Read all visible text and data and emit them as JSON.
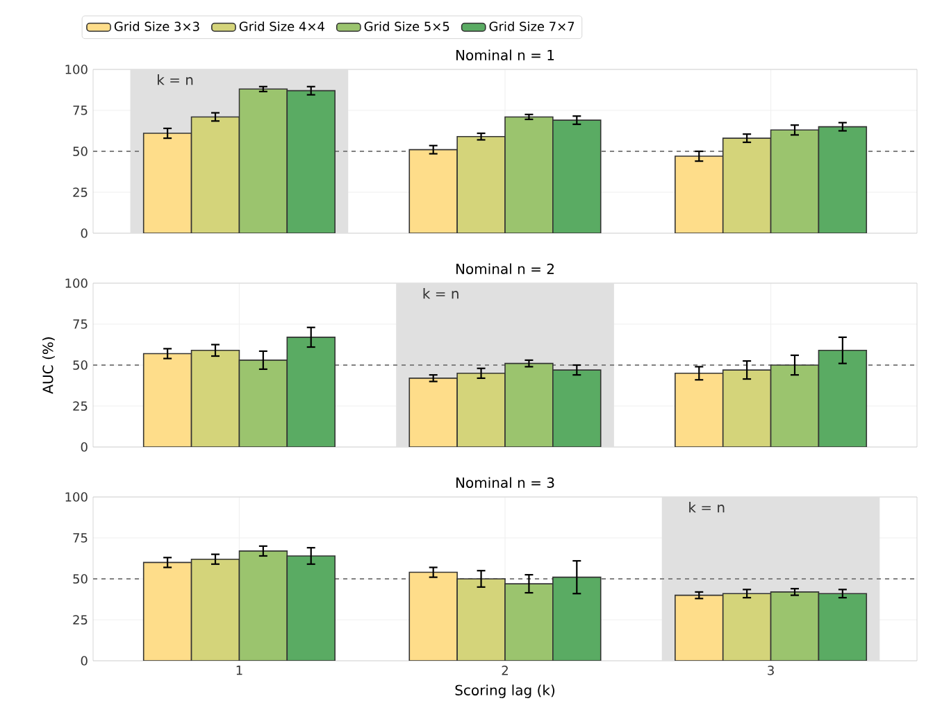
{
  "chart_data": [
    {
      "type": "bar",
      "title": "Nominal n = 1",
      "x": [
        1,
        2,
        3
      ],
      "xlim": [
        0.45,
        3.55
      ],
      "xticks": [
        1,
        2,
        3
      ],
      "ylim": [
        0,
        100
      ],
      "yticks": [
        0,
        25,
        50,
        75,
        100
      ],
      "grid": true,
      "legend": "top",
      "tick_labels": "y",
      "series": [
        {
          "name": "Grid Size 3×3",
          "color": "#fedd8a",
          "values": [
            61,
            51,
            47
          ],
          "errors": [
            3,
            2.5,
            3
          ]
        },
        {
          "name": "Grid Size 4×4",
          "color": "#d4d47a",
          "values": [
            71,
            59,
            58
          ],
          "errors": [
            2.5,
            2,
            2.5
          ]
        },
        {
          "name": "Grid Size 5×5",
          "color": "#9bc46e",
          "values": [
            88,
            71,
            63
          ],
          "errors": [
            1.5,
            1.5,
            3
          ]
        },
        {
          "name": "Grid Size 7×7",
          "color": "#5aab63",
          "values": [
            87,
            69,
            65
          ],
          "errors": [
            2.5,
            2.5,
            2.5
          ]
        }
      ],
      "ref_lines": [
        {
          "axis": "y",
          "value": 50,
          "color": "#808080",
          "line_style": "dashed"
        }
      ],
      "bands": [
        {
          "axis": "x",
          "from": 0.59,
          "to": 1.41,
          "label": "k = n",
          "color": "#e0e0e0"
        }
      ]
    },
    {
      "type": "bar",
      "title": "Nominal n = 2",
      "ylabel": "AUC (%)",
      "x": [
        1,
        2,
        3
      ],
      "xlim": [
        0.45,
        3.55
      ],
      "xticks": [
        1,
        2,
        3
      ],
      "ylim": [
        0,
        100
      ],
      "yticks": [
        0,
        25,
        50,
        75,
        100
      ],
      "grid": true,
      "tick_labels": "y",
      "series": [
        {
          "color": "#fedd8a",
          "values": [
            57,
            42,
            45
          ],
          "errors": [
            3,
            2,
            4
          ]
        },
        {
          "color": "#d4d47a",
          "values": [
            59,
            45,
            47
          ],
          "errors": [
            3.5,
            3,
            5.5
          ]
        },
        {
          "color": "#9bc46e",
          "values": [
            53,
            51,
            50
          ],
          "errors": [
            5.5,
            2,
            6
          ]
        },
        {
          "color": "#5aab63",
          "values": [
            67,
            47,
            59
          ],
          "errors": [
            6,
            3,
            8
          ]
        }
      ],
      "ref_lines": [
        {
          "axis": "y",
          "value": 50,
          "color": "#808080",
          "line_style": "dashed"
        }
      ],
      "bands": [
        {
          "axis": "x",
          "from": 1.59,
          "to": 2.41,
          "label": "k = n",
          "color": "#e0e0e0"
        }
      ]
    },
    {
      "type": "bar",
      "title": "Nominal n = 3",
      "xlabel": "Scoring lag (k)",
      "x": [
        1,
        2,
        3
      ],
      "xlim": [
        0.45,
        3.55
      ],
      "xticks": [
        1,
        2,
        3
      ],
      "ylim": [
        0,
        100
      ],
      "yticks": [
        0,
        25,
        50,
        75,
        100
      ],
      "grid": true,
      "series": [
        {
          "color": "#fedd8a",
          "values": [
            60,
            54,
            40
          ],
          "errors": [
            3,
            3,
            2
          ]
        },
        {
          "color": "#d4d47a",
          "values": [
            62,
            50,
            41
          ],
          "errors": [
            3,
            5,
            2.5
          ]
        },
        {
          "color": "#9bc46e",
          "values": [
            67,
            47,
            42
          ],
          "errors": [
            3,
            5.5,
            2
          ]
        },
        {
          "color": "#5aab63",
          "values": [
            64,
            51,
            41
          ],
          "errors": [
            5,
            10,
            2.5
          ]
        }
      ],
      "ref_lines": [
        {
          "axis": "y",
          "value": 50,
          "color": "#808080",
          "line_style": "dashed"
        }
      ],
      "bands": [
        {
          "axis": "x",
          "from": 2.59,
          "to": 3.41,
          "label": "k = n",
          "color": "#e0e0e0"
        }
      ]
    }
  ]
}
